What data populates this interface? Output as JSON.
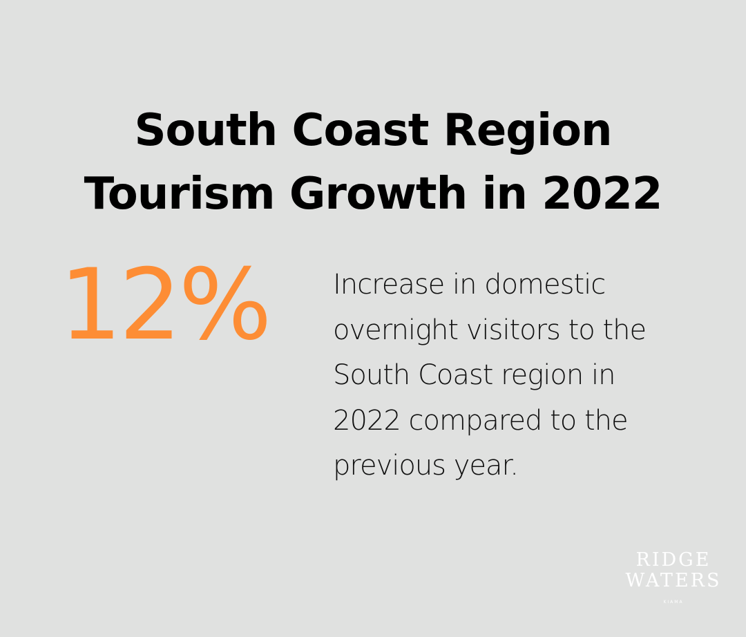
{
  "title": {
    "lines": [
      "South Coast Region",
      "Tourism Growth in 2022"
    ]
  },
  "stat": {
    "value": "12%",
    "color": "#fd8d35"
  },
  "description": {
    "lines": [
      "Increase in domestic",
      "overnight visitors to the",
      "South Coast region in",
      "2022 compared to the",
      "previous year."
    ]
  },
  "logo": {
    "line1": "RIDGE",
    "line2": "WATERS",
    "line3": "KIAMA"
  },
  "colors": {
    "background": "#e0e1e0",
    "accent": "#fd8d35",
    "text": "#000000"
  }
}
